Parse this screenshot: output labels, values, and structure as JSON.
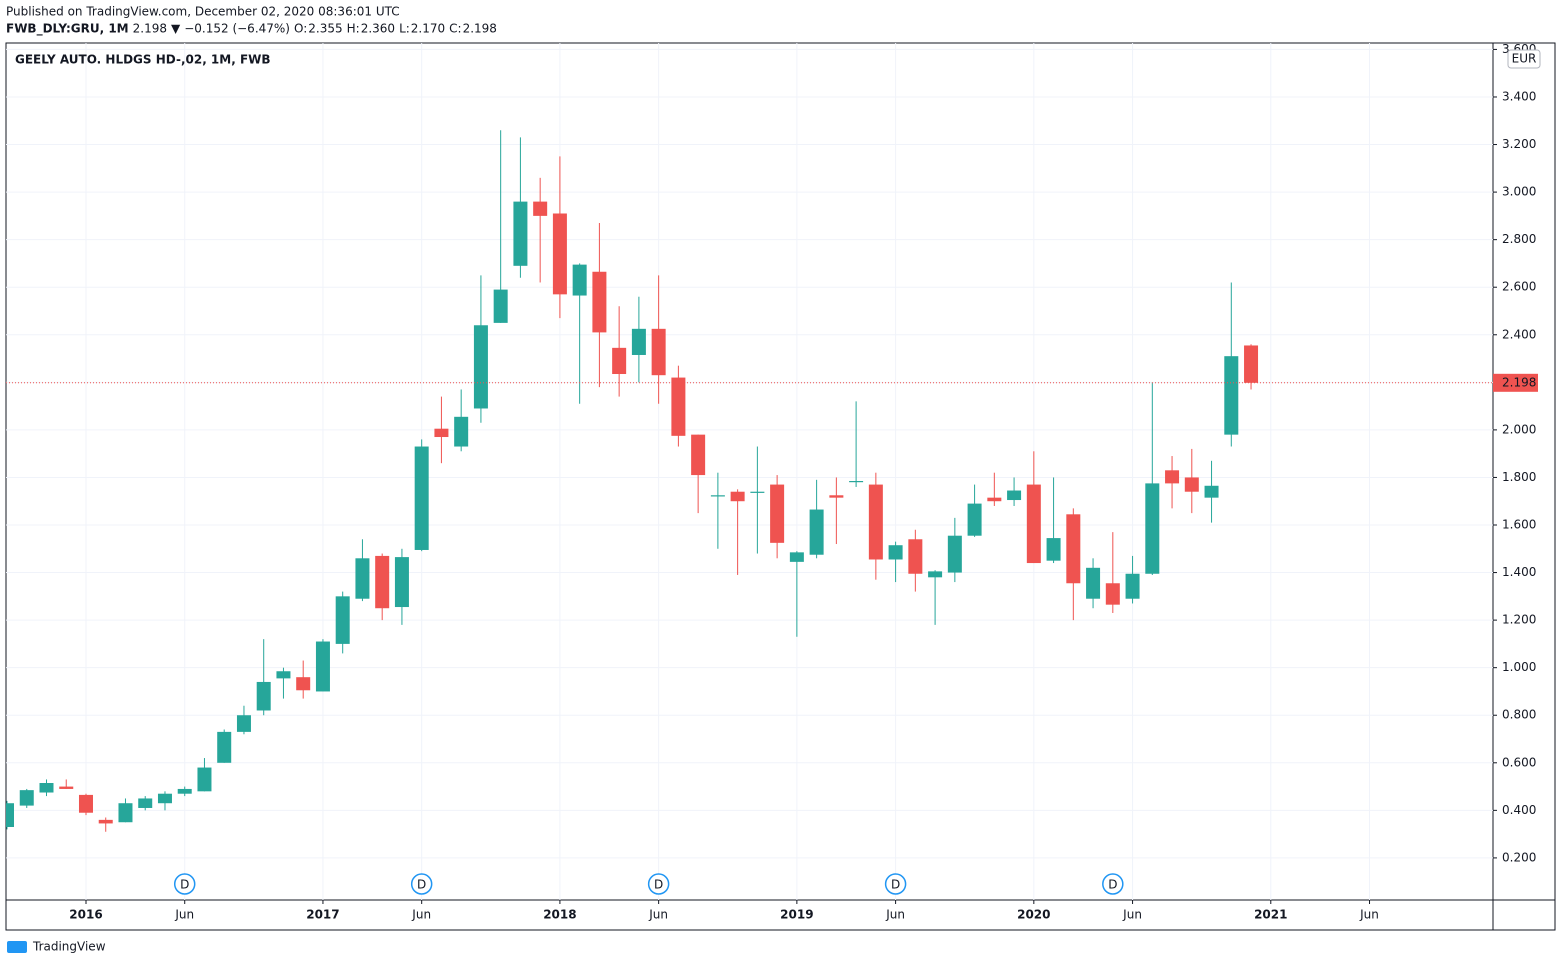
{
  "header": {
    "published": "Published on TradingView.com, December 02, 2020 08:36:01 UTC",
    "symbol": "FWB_DLY:GRU, 1M",
    "arrow": "▼",
    "change": "−0.152 (−6.47%)",
    "o_label": "O:",
    "o": "2.355",
    "h_label": "H:",
    "h": "2.360",
    "l_label": "L:",
    "l": "2.170",
    "c_label": "C:",
    "c": "2.198"
  },
  "footer": {
    "brand": "TradingView"
  },
  "chart_data": {
    "type": "candlestick",
    "title": "GEELY AUTO. HLDGS HD-,02, 1M, FWB",
    "currency": "EUR",
    "x": [
      "2015-09",
      "2015-10",
      "2015-11",
      "2015-12",
      "2016-01",
      "2016-02",
      "2016-03",
      "2016-04",
      "2016-05",
      "2016-06",
      "2016-07",
      "2016-08",
      "2016-09",
      "2016-10",
      "2016-11",
      "2016-12",
      "2017-01",
      "2017-02",
      "2017-03",
      "2017-04",
      "2017-05",
      "2017-06",
      "2017-07",
      "2017-08",
      "2017-09",
      "2017-10",
      "2017-11",
      "2017-12",
      "2018-01",
      "2018-02",
      "2018-03",
      "2018-04",
      "2018-05",
      "2018-06",
      "2018-07",
      "2018-08",
      "2018-09",
      "2018-10",
      "2018-11",
      "2018-12",
      "2019-01",
      "2019-02",
      "2019-03",
      "2019-04",
      "2019-05",
      "2019-06",
      "2019-07",
      "2019-08",
      "2019-09",
      "2019-10",
      "2019-11",
      "2019-12",
      "2020-01",
      "2020-02",
      "2020-03",
      "2020-04",
      "2020-05",
      "2020-06",
      "2020-07",
      "2020-08",
      "2020-09",
      "2020-10",
      "2020-11",
      "2020-12"
    ],
    "open": [
      0.33,
      0.42,
      0.475,
      0.5,
      0.465,
      0.36,
      0.35,
      0.41,
      0.43,
      0.47,
      0.48,
      0.6,
      0.73,
      0.82,
      0.955,
      0.96,
      0.9,
      1.1,
      1.29,
      1.47,
      1.255,
      1.495,
      2.005,
      1.93,
      2.09,
      2.45,
      2.69,
      2.96,
      2.91,
      2.565,
      2.665,
      2.345,
      2.315,
      2.425,
      2.22,
      1.98,
      1.72,
      1.74,
      1.735,
      1.77,
      1.445,
      1.475,
      1.725,
      1.78,
      1.77,
      1.455,
      1.54,
      1.38,
      1.4,
      1.555,
      1.715,
      1.705,
      1.77,
      1.45,
      1.645,
      1.29,
      1.355,
      1.29,
      1.395,
      1.83,
      1.8,
      1.715,
      1.98,
      2.355
    ],
    "high": [
      0.44,
      0.49,
      0.53,
      0.53,
      0.47,
      0.37,
      0.45,
      0.46,
      0.48,
      0.5,
      0.62,
      0.74,
      0.84,
      1.12,
      1.0,
      1.03,
      1.12,
      1.32,
      1.54,
      1.48,
      1.5,
      1.96,
      2.14,
      2.17,
      2.65,
      3.26,
      3.23,
      3.06,
      3.15,
      2.7,
      2.87,
      2.52,
      2.56,
      2.65,
      2.27,
      1.98,
      1.82,
      1.75,
      1.93,
      1.81,
      1.49,
      1.79,
      1.8,
      2.12,
      1.82,
      1.53,
      1.58,
      1.41,
      1.63,
      1.77,
      1.82,
      1.8,
      1.91,
      1.8,
      1.67,
      1.46,
      1.57,
      1.47,
      2.2,
      1.89,
      1.92,
      1.87,
      2.62,
      2.36
    ],
    "low": [
      0.32,
      0.41,
      0.46,
      0.49,
      0.38,
      0.31,
      0.35,
      0.4,
      0.4,
      0.46,
      0.48,
      0.6,
      0.72,
      0.8,
      0.87,
      0.87,
      0.9,
      1.06,
      1.28,
      1.2,
      1.18,
      1.49,
      1.86,
      1.91,
      2.03,
      2.45,
      2.64,
      2.62,
      2.47,
      2.11,
      2.18,
      2.14,
      2.2,
      2.11,
      1.93,
      1.65,
      1.5,
      1.39,
      1.48,
      1.46,
      1.13,
      1.46,
      1.52,
      1.76,
      1.37,
      1.36,
      1.32,
      1.18,
      1.36,
      1.55,
      1.68,
      1.68,
      1.44,
      1.44,
      1.2,
      1.25,
      1.23,
      1.27,
      1.39,
      1.67,
      1.65,
      1.61,
      1.93,
      2.17
    ],
    "close": [
      0.43,
      0.485,
      0.515,
      0.49,
      0.39,
      0.345,
      0.43,
      0.45,
      0.47,
      0.49,
      0.58,
      0.73,
      0.8,
      0.94,
      0.985,
      0.905,
      1.11,
      1.3,
      1.46,
      1.25,
      1.465,
      1.93,
      1.97,
      2.055,
      2.44,
      2.59,
      2.96,
      2.9,
      2.57,
      2.695,
      2.41,
      2.235,
      2.425,
      2.23,
      1.975,
      1.81,
      1.725,
      1.7,
      1.74,
      1.525,
      1.485,
      1.665,
      1.715,
      1.785,
      1.455,
      1.515,
      1.395,
      1.405,
      1.555,
      1.69,
      1.7,
      1.745,
      1.44,
      1.545,
      1.355,
      1.42,
      1.265,
      1.395,
      1.775,
      1.775,
      1.74,
      1.765,
      2.31,
      2.198
    ],
    "up_color": "#26a69a",
    "down_color": "#ef5350",
    "xlim": [
      "2015-09",
      "2021-12"
    ],
    "xticks": [
      {
        "value": "2016-01",
        "label": "2016"
      },
      {
        "value": "2016-06",
        "label": "Jun"
      },
      {
        "value": "2017-01",
        "label": "2017"
      },
      {
        "value": "2017-06",
        "label": "Jun"
      },
      {
        "value": "2018-01",
        "label": "2018"
      },
      {
        "value": "2018-06",
        "label": "Jun"
      },
      {
        "value": "2019-01",
        "label": "2019"
      },
      {
        "value": "2019-06",
        "label": "Jun"
      },
      {
        "value": "2020-01",
        "label": "2020"
      },
      {
        "value": "2020-06",
        "label": "Jun"
      },
      {
        "value": "2021-01",
        "label": "2021"
      },
      {
        "value": "2021-06",
        "label": "Jun"
      }
    ],
    "ylim": [
      0.023,
      3.627
    ],
    "yticks": [
      {
        "value": 0.2,
        "label": "0.200"
      },
      {
        "value": 0.4,
        "label": "0.400"
      },
      {
        "value": 0.6,
        "label": "0.600"
      },
      {
        "value": 0.8,
        "label": "0.800"
      },
      {
        "value": 1.0,
        "label": "1.000"
      },
      {
        "value": 1.2,
        "label": "1.200"
      },
      {
        "value": 1.4,
        "label": "1.400"
      },
      {
        "value": 1.6,
        "label": "1.600"
      },
      {
        "value": 1.8,
        "label": "1.800"
      },
      {
        "value": 2.0,
        "label": "2.000"
      },
      {
        "value": 2.2,
        "label": "2.200"
      },
      {
        "value": 2.4,
        "label": "2.400"
      },
      {
        "value": 2.6,
        "label": "2.600"
      },
      {
        "value": 2.8,
        "label": "2.800"
      },
      {
        "value": 3.0,
        "label": "3.000"
      },
      {
        "value": 3.2,
        "label": "3.200"
      },
      {
        "value": 3.4,
        "label": "3.400"
      },
      {
        "value": 3.6,
        "label": "3.600"
      }
    ],
    "grid": true,
    "events": [
      {
        "x": "2016-06",
        "label": "D"
      },
      {
        "x": "2017-06",
        "label": "D"
      },
      {
        "x": "2018-06",
        "label": "D"
      },
      {
        "x": "2019-06",
        "label": "D"
      },
      {
        "x": "2020-05",
        "label": "D"
      }
    ]
  }
}
